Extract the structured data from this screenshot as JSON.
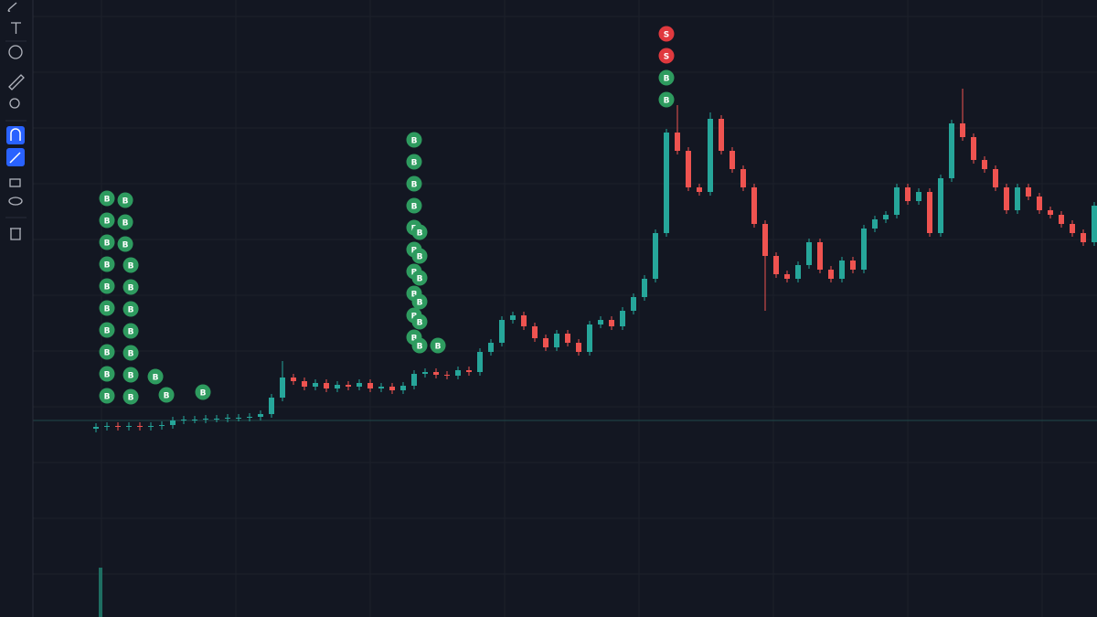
{
  "chart_data": {
    "type": "candlestick",
    "up_color": "#26a69a",
    "down_color": "#ef5350",
    "ylim": [
      0,
      675
    ],
    "open": [
      206,
      208,
      209,
      208,
      209,
      208,
      209,
      210,
      215,
      216,
      216,
      217,
      217,
      218,
      218,
      219,
      222,
      240,
      262,
      258,
      252,
      256,
      250,
      254,
      252,
      256,
      250,
      252,
      248,
      253,
      266,
      268,
      265,
      264,
      270,
      268,
      290,
      300,
      325,
      330,
      318,
      305,
      295,
      310,
      300,
      290,
      320,
      325,
      318,
      335,
      350,
      370,
      420,
      530,
      510,
      470,
      465,
      545,
      510,
      490,
      470,
      430,
      395,
      375,
      370,
      385,
      410,
      380,
      370,
      390,
      380,
      425,
      435,
      440,
      470,
      455,
      465,
      420,
      480,
      540,
      525,
      500,
      490,
      470,
      445,
      470,
      460,
      445,
      440,
      430,
      420,
      410
    ],
    "high": [
      212,
      213,
      213,
      213,
      213,
      213,
      214,
      219,
      220,
      220,
      221,
      221,
      222,
      222,
      223,
      226,
      244,
      280,
      266,
      262,
      260,
      260,
      258,
      258,
      260,
      260,
      256,
      256,
      257,
      270,
      272,
      272,
      269,
      274,
      274,
      294,
      304,
      329,
      334,
      334,
      322,
      309,
      314,
      314,
      304,
      324,
      329,
      329,
      339,
      354,
      374,
      424,
      534,
      560,
      514,
      474,
      552,
      549,
      514,
      494,
      474,
      434,
      399,
      379,
      389,
      414,
      414,
      384,
      394,
      394,
      429,
      439,
      444,
      474,
      474,
      469,
      469,
      484,
      544,
      578,
      529,
      504,
      494,
      474,
      474,
      474,
      464,
      449,
      444,
      434,
      424,
      454
    ],
    "low": [
      202,
      204,
      204,
      204,
      204,
      204,
      205,
      206,
      211,
      212,
      212,
      213,
      213,
      214,
      214,
      215,
      218,
      236,
      254,
      248,
      248,
      246,
      246,
      248,
      248,
      246,
      246,
      244,
      244,
      249,
      262,
      261,
      260,
      260,
      264,
      264,
      286,
      296,
      321,
      314,
      301,
      291,
      291,
      296,
      286,
      286,
      316,
      314,
      314,
      331,
      346,
      366,
      416,
      506,
      466,
      461,
      461,
      506,
      486,
      466,
      426,
      335,
      371,
      366,
      366,
      381,
      376,
      366,
      366,
      376,
      376,
      421,
      431,
      436,
      451,
      451,
      416,
      416,
      476,
      521,
      496,
      486,
      466,
      441,
      441,
      456,
      441,
      436,
      426,
      416,
      406,
      406
    ],
    "close": [
      208,
      209,
      208,
      209,
      208,
      209,
      210,
      215,
      216,
      216,
      217,
      217,
      218,
      218,
      219,
      222,
      240,
      262,
      258,
      252,
      256,
      250,
      254,
      252,
      256,
      250,
      252,
      248,
      253,
      266,
      268,
      265,
      264,
      270,
      268,
      290,
      300,
      325,
      330,
      318,
      305,
      295,
      310,
      300,
      290,
      320,
      325,
      318,
      335,
      350,
      370,
      420,
      530,
      510,
      470,
      465,
      545,
      510,
      490,
      470,
      430,
      395,
      375,
      370,
      385,
      410,
      380,
      370,
      390,
      380,
      425,
      435,
      440,
      470,
      455,
      465,
      420,
      480,
      540,
      525,
      500,
      490,
      470,
      445,
      470,
      460,
      445,
      440,
      430,
      420,
      410,
      450
    ],
    "buy_color": "#2e9b5f",
    "sell_color": "#e0393e",
    "markers": [
      {
        "label": "B",
        "x": 1,
        "y": 458
      },
      {
        "label": "B",
        "x": 1,
        "y": 434
      },
      {
        "label": "B",
        "x": 1,
        "y": 410
      },
      {
        "label": "B",
        "x": 1,
        "y": 386
      },
      {
        "label": "B",
        "x": 1,
        "y": 362
      },
      {
        "label": "B",
        "x": 1,
        "y": 338
      },
      {
        "label": "B",
        "x": 1,
        "y": 314
      },
      {
        "label": "B",
        "x": 1,
        "y": 290
      },
      {
        "label": "B",
        "x": 1,
        "y": 266
      },
      {
        "label": "B",
        "x": 1,
        "y": 242
      },
      {
        "label": "B",
        "x": 2.67,
        "y": 456
      },
      {
        "label": "B",
        "x": 2.67,
        "y": 432
      },
      {
        "label": "B",
        "x": 2.67,
        "y": 408
      },
      {
        "label": "B",
        "x": 3.17,
        "y": 385
      },
      {
        "label": "B",
        "x": 3.17,
        "y": 361
      },
      {
        "label": "B",
        "x": 3.17,
        "y": 337
      },
      {
        "label": "B",
        "x": 3.17,
        "y": 313
      },
      {
        "label": "B",
        "x": 3.17,
        "y": 289
      },
      {
        "label": "B",
        "x": 3.17,
        "y": 265
      },
      {
        "label": "B",
        "x": 3.17,
        "y": 241
      },
      {
        "label": "B",
        "x": 5.42,
        "y": 263
      },
      {
        "label": "B",
        "x": 6.42,
        "y": 243
      },
      {
        "label": "B",
        "x": 9.75,
        "y": 246
      },
      {
        "label": "B",
        "x": 29,
        "y": 522
      },
      {
        "label": "B",
        "x": 29,
        "y": 498
      },
      {
        "label": "B",
        "x": 29,
        "y": 474
      },
      {
        "label": "B",
        "x": 29,
        "y": 450
      },
      {
        "label": "B",
        "x": 29,
        "y": 426
      },
      {
        "label": "B",
        "x": 29,
        "y": 402
      },
      {
        "label": "B",
        "x": 29,
        "y": 378
      },
      {
        "label": "B",
        "x": 29,
        "y": 354
      },
      {
        "label": "B",
        "x": 29,
        "y": 330
      },
      {
        "label": "B",
        "x": 29,
        "y": 306
      },
      {
        "label": "B",
        "x": 29.5,
        "y": 421
      },
      {
        "label": "B",
        "x": 29.5,
        "y": 395
      },
      {
        "label": "B",
        "x": 29.5,
        "y": 371
      },
      {
        "label": "B",
        "x": 29.5,
        "y": 345
      },
      {
        "label": "B",
        "x": 29.5,
        "y": 323
      },
      {
        "label": "B",
        "x": 29.5,
        "y": 297
      },
      {
        "label": "B",
        "x": 31.17,
        "y": 297
      },
      {
        "label": "S",
        "x": 52,
        "y": 638
      },
      {
        "label": "S",
        "x": 52,
        "y": 614
      },
      {
        "label": "B",
        "x": 52,
        "y": 590
      },
      {
        "label": "B",
        "x": 52,
        "y": 566
      }
    ]
  }
}
